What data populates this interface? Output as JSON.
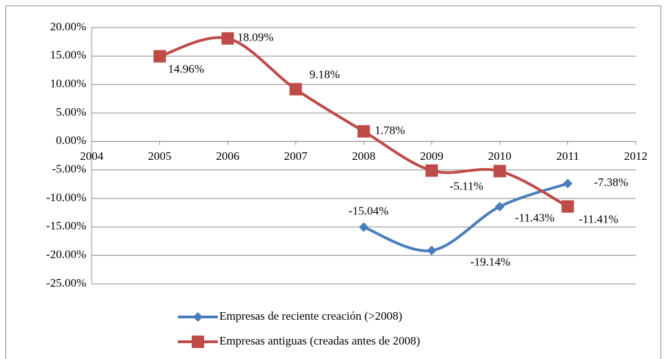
{
  "chart_data": {
    "type": "line",
    "x": [
      2005,
      2006,
      2007,
      2008,
      2009,
      2010,
      2011
    ],
    "series": [
      {
        "name": "Empresas de reciente creación (>2008)",
        "color": "#4a7ebb",
        "marker": "diamond",
        "values": [
          null,
          null,
          null,
          -15.04,
          -19.14,
          -11.43,
          -7.38
        ],
        "value_labels": [
          null,
          null,
          null,
          "-15.04%",
          "-19.14%",
          "-11.43%",
          "-7.38%"
        ]
      },
      {
        "name": "Empresas antiguas (creadas antes de 2008)",
        "color": "#be4b48",
        "marker": "square",
        "values": [
          14.96,
          18.09,
          9.18,
          1.78,
          -5.11,
          -5.2,
          -11.41
        ],
        "value_labels": [
          "14.96%",
          "18.09%",
          "9.18%",
          "1.78%",
          "-5.11%",
          null,
          "-11.41%"
        ]
      }
    ],
    "xlim": [
      2004,
      2012
    ],
    "xticks": [
      2004,
      2005,
      2006,
      2007,
      2008,
      2009,
      2010,
      2011,
      2012
    ],
    "ylim": [
      -25,
      20
    ],
    "yticks": [
      {
        "value": -25,
        "label": "-25.00%"
      },
      {
        "value": -20,
        "label": "-20.00%"
      },
      {
        "value": -15,
        "label": "-15.00%"
      },
      {
        "value": -10,
        "label": "-10.00%"
      },
      {
        "value": -5,
        "label": "-5.00%"
      },
      {
        "value": 0,
        "label": "0.00%"
      },
      {
        "value": 5,
        "label": "5.00%"
      },
      {
        "value": 10,
        "label": "10.00%"
      },
      {
        "value": 15,
        "label": "15.00%"
      },
      {
        "value": 20,
        "label": "20.00%"
      }
    ],
    "grid": true,
    "legend": "bottom"
  }
}
